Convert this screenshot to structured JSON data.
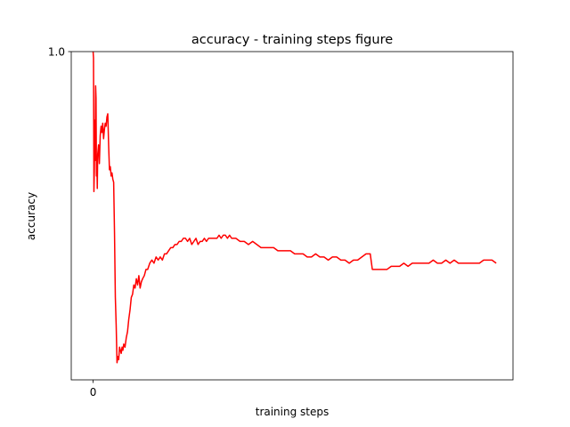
{
  "chart_data": {
    "type": "line",
    "title": "accuracy - training steps figure",
    "xlabel": "training steps",
    "ylabel": "accuracy",
    "xticks": [
      {
        "value": 0,
        "label": "0"
      }
    ],
    "yticks": [
      {
        "value": 1.0,
        "label": "1.0"
      }
    ],
    "xlim": [
      -52,
      1000
    ],
    "ylim": [
      -0.055,
      1.0
    ],
    "grid": false,
    "series": [
      {
        "name": "",
        "color": "#ff0000",
        "points": [
          [
            0,
            1.0
          ],
          [
            1,
            0.98
          ],
          [
            2,
            0.55
          ],
          [
            3,
            0.62
          ],
          [
            4,
            0.78
          ],
          [
            5,
            0.65
          ],
          [
            6,
            0.89
          ],
          [
            7,
            0.85
          ],
          [
            8,
            0.6
          ],
          [
            9,
            0.64
          ],
          [
            10,
            0.56
          ],
          [
            11,
            0.67
          ],
          [
            13,
            0.7
          ],
          [
            15,
            0.64
          ],
          [
            17,
            0.73
          ],
          [
            19,
            0.76
          ],
          [
            21,
            0.74
          ],
          [
            23,
            0.77
          ],
          [
            25,
            0.72
          ],
          [
            27,
            0.75
          ],
          [
            29,
            0.77
          ],
          [
            31,
            0.76
          ],
          [
            33,
            0.79
          ],
          [
            35,
            0.8
          ],
          [
            37,
            0.7
          ],
          [
            39,
            0.62
          ],
          [
            41,
            0.63
          ],
          [
            43,
            0.6
          ],
          [
            45,
            0.61
          ],
          [
            47,
            0.59
          ],
          [
            49,
            0.58
          ],
          [
            51,
            0.42
          ],
          [
            53,
            0.21
          ],
          [
            55,
            0.12
          ],
          [
            57,
            0.0
          ],
          [
            59,
            0.02
          ],
          [
            61,
            0.01
          ],
          [
            63,
            0.05
          ],
          [
            65,
            0.04
          ],
          [
            67,
            0.03
          ],
          [
            69,
            0.05
          ],
          [
            71,
            0.04
          ],
          [
            73,
            0.06
          ],
          [
            76,
            0.05
          ],
          [
            79,
            0.08
          ],
          [
            82,
            0.1
          ],
          [
            85,
            0.14
          ],
          [
            88,
            0.17
          ],
          [
            91,
            0.21
          ],
          [
            94,
            0.22
          ],
          [
            97,
            0.25
          ],
          [
            100,
            0.24
          ],
          [
            103,
            0.27
          ],
          [
            106,
            0.25
          ],
          [
            109,
            0.28
          ],
          [
            112,
            0.24
          ],
          [
            115,
            0.26
          ],
          [
            118,
            0.27
          ],
          [
            122,
            0.28
          ],
          [
            126,
            0.3
          ],
          [
            130,
            0.3
          ],
          [
            135,
            0.32
          ],
          [
            140,
            0.33
          ],
          [
            145,
            0.32
          ],
          [
            150,
            0.34
          ],
          [
            155,
            0.33
          ],
          [
            160,
            0.34
          ],
          [
            165,
            0.33
          ],
          [
            170,
            0.35
          ],
          [
            175,
            0.35
          ],
          [
            180,
            0.36
          ],
          [
            185,
            0.37
          ],
          [
            190,
            0.37
          ],
          [
            195,
            0.38
          ],
          [
            200,
            0.38
          ],
          [
            205,
            0.39
          ],
          [
            210,
            0.39
          ],
          [
            215,
            0.4
          ],
          [
            220,
            0.4
          ],
          [
            225,
            0.39
          ],
          [
            230,
            0.4
          ],
          [
            235,
            0.38
          ],
          [
            240,
            0.39
          ],
          [
            245,
            0.4
          ],
          [
            250,
            0.38
          ],
          [
            255,
            0.39
          ],
          [
            260,
            0.39
          ],
          [
            265,
            0.4
          ],
          [
            270,
            0.39
          ],
          [
            275,
            0.4
          ],
          [
            280,
            0.4
          ],
          [
            285,
            0.4
          ],
          [
            290,
            0.4
          ],
          [
            295,
            0.4
          ],
          [
            300,
            0.41
          ],
          [
            305,
            0.4
          ],
          [
            310,
            0.41
          ],
          [
            315,
            0.41
          ],
          [
            320,
            0.4
          ],
          [
            325,
            0.41
          ],
          [
            330,
            0.4
          ],
          [
            335,
            0.4
          ],
          [
            340,
            0.4
          ],
          [
            350,
            0.39
          ],
          [
            360,
            0.39
          ],
          [
            370,
            0.38
          ],
          [
            380,
            0.39
          ],
          [
            390,
            0.38
          ],
          [
            400,
            0.37
          ],
          [
            410,
            0.37
          ],
          [
            420,
            0.37
          ],
          [
            430,
            0.37
          ],
          [
            440,
            0.36
          ],
          [
            450,
            0.36
          ],
          [
            460,
            0.36
          ],
          [
            470,
            0.36
          ],
          [
            480,
            0.35
          ],
          [
            490,
            0.35
          ],
          [
            500,
            0.35
          ],
          [
            510,
            0.34
          ],
          [
            520,
            0.34
          ],
          [
            530,
            0.35
          ],
          [
            540,
            0.34
          ],
          [
            550,
            0.34
          ],
          [
            560,
            0.33
          ],
          [
            570,
            0.34
          ],
          [
            580,
            0.34
          ],
          [
            590,
            0.33
          ],
          [
            600,
            0.33
          ],
          [
            610,
            0.32
          ],
          [
            620,
            0.33
          ],
          [
            630,
            0.33
          ],
          [
            640,
            0.34
          ],
          [
            650,
            0.35
          ],
          [
            660,
            0.35
          ],
          [
            665,
            0.3
          ],
          [
            670,
            0.3
          ],
          [
            680,
            0.3
          ],
          [
            690,
            0.3
          ],
          [
            700,
            0.3
          ],
          [
            710,
            0.31
          ],
          [
            720,
            0.31
          ],
          [
            730,
            0.31
          ],
          [
            740,
            0.32
          ],
          [
            750,
            0.31
          ],
          [
            760,
            0.32
          ],
          [
            770,
            0.32
          ],
          [
            780,
            0.32
          ],
          [
            790,
            0.32
          ],
          [
            800,
            0.32
          ],
          [
            810,
            0.33
          ],
          [
            820,
            0.32
          ],
          [
            830,
            0.32
          ],
          [
            840,
            0.33
          ],
          [
            850,
            0.32
          ],
          [
            860,
            0.33
          ],
          [
            870,
            0.32
          ],
          [
            880,
            0.32
          ],
          [
            890,
            0.32
          ],
          [
            900,
            0.32
          ],
          [
            910,
            0.32
          ],
          [
            920,
            0.32
          ],
          [
            930,
            0.33
          ],
          [
            940,
            0.33
          ],
          [
            950,
            0.33
          ],
          [
            960,
            0.32
          ]
        ]
      }
    ]
  }
}
